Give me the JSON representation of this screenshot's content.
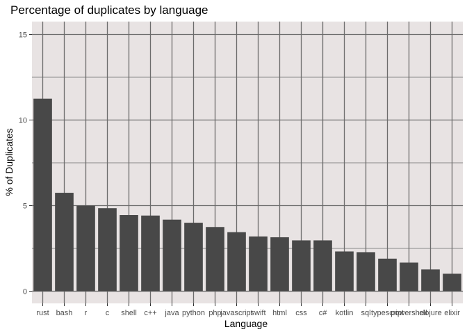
{
  "chart_data": {
    "type": "bar",
    "title": "Percentage of duplicates by language",
    "xlabel": "Language",
    "ylabel": "% of Duplicates",
    "ylim": [
      0,
      15.6
    ],
    "yticks": [
      0,
      5,
      10,
      15
    ],
    "grid": true,
    "colors": {
      "panel": "#e8e3e3",
      "grid": "#6b6b6b",
      "bar": "#484848",
      "tick_text": "#4d4d4d"
    },
    "categories": [
      "rust",
      "bash",
      "r",
      "c",
      "shell",
      "c++",
      "java",
      "python",
      "php",
      "javascript",
      "swift",
      "html",
      "css",
      "c#",
      "kotlin",
      "sql",
      "typescript",
      "powershell",
      "clojure",
      "elixir"
    ],
    "values": [
      11.25,
      5.75,
      5.0,
      4.85,
      4.45,
      4.42,
      4.18,
      4.0,
      3.75,
      3.45,
      3.2,
      3.15,
      2.97,
      2.97,
      2.32,
      2.28,
      1.9,
      1.67,
      1.27,
      1.02
    ]
  }
}
